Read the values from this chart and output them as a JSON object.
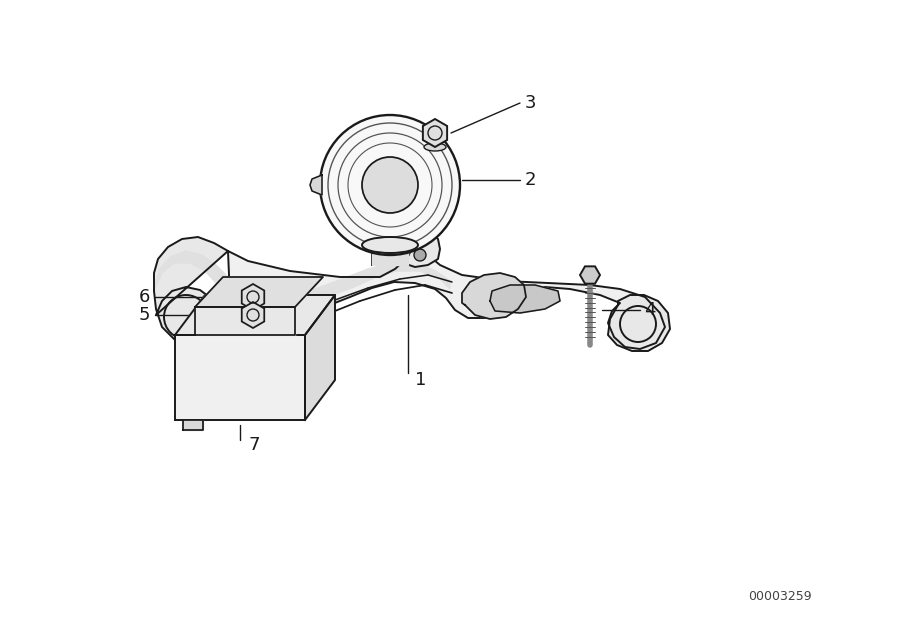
{
  "bg_color": "#ffffff",
  "line_color": "#1a1a1a",
  "fig_width": 9.0,
  "fig_height": 6.35,
  "dpi": 100,
  "watermark": "00003259",
  "fill_color": "#f5f5f5",
  "shadow_color": "#d0d0d0"
}
